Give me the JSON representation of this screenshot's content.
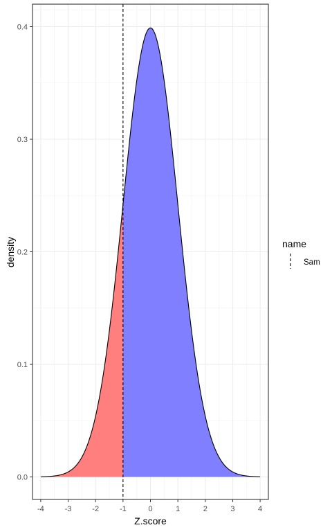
{
  "chart_data": {
    "type": "area",
    "xlabel": "Z.score",
    "ylabel": "density",
    "xlim": [
      -4.3,
      4.3
    ],
    "ylim": [
      -0.02,
      0.42
    ],
    "x_ticks": [
      -4,
      -3,
      -2,
      -1,
      0,
      1,
      2,
      3,
      4
    ],
    "y_ticks": [
      0.0,
      0.1,
      0.2,
      0.3,
      0.4
    ],
    "x_tick_labels": [
      "-4",
      "-3",
      "-2",
      "-1",
      "0",
      "1",
      "2",
      "3",
      "4"
    ],
    "y_tick_labels": [
      "0.0",
      "0.1",
      "0.2",
      "0.3",
      "0.4"
    ],
    "grid": true,
    "curve": {
      "distribution": "standard normal density",
      "x_range": [
        -4,
        4
      ],
      "peak": {
        "x": 0,
        "y": 0.399
      },
      "line_color": "#000000"
    },
    "shaded_regions": [
      {
        "x_range": [
          -4,
          -1
        ],
        "color": "#ff7f7f"
      },
      {
        "x_range": [
          -1,
          4
        ],
        "color": "#7f7fff"
      }
    ],
    "vline": {
      "x": -1,
      "style": "dashed",
      "color": "#000000"
    },
    "legend": {
      "title": "name",
      "placement": "right",
      "entries": [
        {
          "label": "Sam",
          "style": "dashed"
        }
      ]
    }
  }
}
